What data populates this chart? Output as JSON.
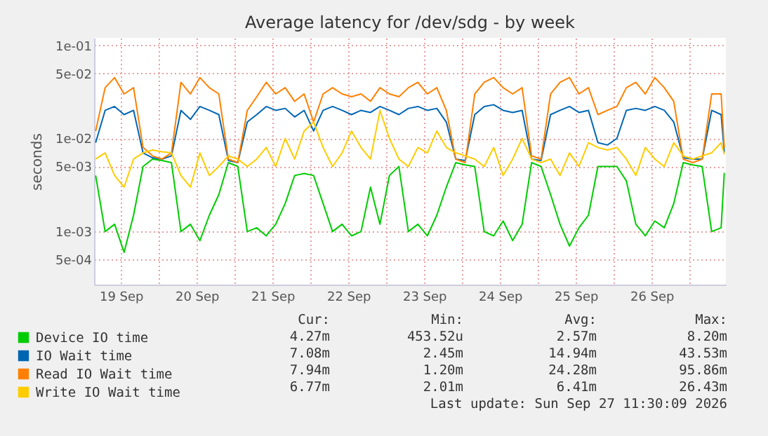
{
  "chart_data": {
    "type": "line",
    "title": "Average latency for /dev/sdg - by week",
    "ylabel": "seconds",
    "log": true,
    "grid": true,
    "legend": "bottom",
    "line_style": "solid",
    "xlim": [
      "2026-09-19T03:30",
      "2026-09-27T11:30"
    ],
    "xticks": [
      {
        "value": "2026-09-19T12:00",
        "label": "19 Sep"
      },
      {
        "value": "2026-09-20T00:00",
        "label": null
      },
      {
        "value": "2026-09-20T12:00",
        "label": "20 Sep"
      },
      {
        "value": "2026-09-21T00:00",
        "label": null
      },
      {
        "value": "2026-09-21T12:00",
        "label": "21 Sep"
      },
      {
        "value": "2026-09-22T00:00",
        "label": null
      },
      {
        "value": "2026-09-22T12:00",
        "label": "22 Sep"
      },
      {
        "value": "2026-09-23T00:00",
        "label": null
      },
      {
        "value": "2026-09-23T12:00",
        "label": "23 Sep"
      },
      {
        "value": "2026-09-24T00:00",
        "label": null
      },
      {
        "value": "2026-09-24T12:00",
        "label": "24 Sep"
      },
      {
        "value": "2026-09-25T00:00",
        "label": null
      },
      {
        "value": "2026-09-25T12:00",
        "label": "25 Sep"
      },
      {
        "value": "2026-09-26T00:00",
        "label": null
      },
      {
        "value": "2026-09-26T12:00",
        "label": "26 Sep"
      },
      {
        "value": "2026-09-27T00:00",
        "label": null
      }
    ],
    "ylim": [
      0.00027,
      0.12
    ],
    "yticks": [
      {
        "value": 0.0005,
        "label": "5e-04"
      },
      {
        "value": 0.001,
        "label": "1e-03"
      },
      {
        "value": 0.005,
        "label": "5e-03"
      },
      {
        "value": 0.01,
        "label": "1e-02"
      },
      {
        "value": 0.05,
        "label": "5e-02"
      },
      {
        "value": 0.1,
        "label": "1e-01"
      }
    ],
    "x": [
      "2026-09-19T04:00",
      "2026-09-19T07:00",
      "2026-09-19T10:00",
      "2026-09-19T13:00",
      "2026-09-19T16:00",
      "2026-09-19T19:00",
      "2026-09-19T22:00",
      "2026-09-20T01:00",
      "2026-09-20T04:00",
      "2026-09-20T07:00",
      "2026-09-20T10:00",
      "2026-09-20T13:00",
      "2026-09-20T16:00",
      "2026-09-20T19:00",
      "2026-09-20T22:00",
      "2026-09-21T01:00",
      "2026-09-21T04:00",
      "2026-09-21T07:00",
      "2026-09-21T10:00",
      "2026-09-21T13:00",
      "2026-09-21T16:00",
      "2026-09-21T19:00",
      "2026-09-21T22:00",
      "2026-09-22T01:00",
      "2026-09-22T04:00",
      "2026-09-22T07:00",
      "2026-09-22T10:00",
      "2026-09-22T13:00",
      "2026-09-22T16:00",
      "2026-09-22T19:00",
      "2026-09-22T22:00",
      "2026-09-23T01:00",
      "2026-09-23T04:00",
      "2026-09-23T07:00",
      "2026-09-23T10:00",
      "2026-09-23T13:00",
      "2026-09-23T16:00",
      "2026-09-23T19:00",
      "2026-09-23T22:00",
      "2026-09-24T01:00",
      "2026-09-24T04:00",
      "2026-09-24T07:00",
      "2026-09-24T10:00",
      "2026-09-24T13:00",
      "2026-09-24T16:00",
      "2026-09-24T19:00",
      "2026-09-24T22:00",
      "2026-09-25T01:00",
      "2026-09-25T04:00",
      "2026-09-25T07:00",
      "2026-09-25T10:00",
      "2026-09-25T13:00",
      "2026-09-25T16:00",
      "2026-09-25T19:00",
      "2026-09-25T22:00",
      "2026-09-26T01:00",
      "2026-09-26T04:00",
      "2026-09-26T07:00",
      "2026-09-26T10:00",
      "2026-09-26T13:00",
      "2026-09-26T16:00",
      "2026-09-26T19:00",
      "2026-09-26T22:00",
      "2026-09-27T01:00",
      "2026-09-27T04:00",
      "2026-09-27T07:00",
      "2026-09-27T10:00",
      "2026-09-27T11:00"
    ],
    "series": [
      {
        "name": "Device IO time",
        "color": "#00cc00",
        "values": [
          0.004,
          0.001,
          0.0012,
          0.0006,
          0.0015,
          0.005,
          0.006,
          0.0058,
          0.0055,
          0.001,
          0.0012,
          0.0008,
          0.0015,
          0.0025,
          0.0055,
          0.005,
          0.001,
          0.0011,
          0.0009,
          0.0012,
          0.002,
          0.004,
          0.0042,
          0.004,
          0.002,
          0.001,
          0.0012,
          0.0009,
          0.001,
          0.003,
          0.0012,
          0.004,
          0.005,
          0.001,
          0.0012,
          0.0009,
          0.0015,
          0.003,
          0.0055,
          0.0052,
          0.005,
          0.001,
          0.0009,
          0.0013,
          0.0008,
          0.0012,
          0.0055,
          0.005,
          0.0025,
          0.0012,
          0.0007,
          0.0011,
          0.0015,
          0.005,
          0.005,
          0.005,
          0.0035,
          0.0012,
          0.0009,
          0.0013,
          0.0011,
          0.002,
          0.0055,
          0.0052,
          0.005,
          0.001,
          0.0011,
          0.00427
        ]
      },
      {
        "name": "IO Wait time",
        "color": "#0066b3",
        "values": [
          0.009,
          0.02,
          0.022,
          0.018,
          0.02,
          0.007,
          0.0062,
          0.006,
          0.0065,
          0.02,
          0.016,
          0.022,
          0.02,
          0.018,
          0.0058,
          0.0055,
          0.015,
          0.018,
          0.022,
          0.02,
          0.021,
          0.017,
          0.02,
          0.012,
          0.02,
          0.022,
          0.02,
          0.018,
          0.02,
          0.019,
          0.022,
          0.02,
          0.018,
          0.021,
          0.022,
          0.02,
          0.021,
          0.015,
          0.006,
          0.0058,
          0.018,
          0.022,
          0.023,
          0.02,
          0.019,
          0.02,
          0.006,
          0.0058,
          0.018,
          0.02,
          0.022,
          0.019,
          0.02,
          0.009,
          0.0085,
          0.01,
          0.02,
          0.021,
          0.02,
          0.022,
          0.02,
          0.015,
          0.0062,
          0.006,
          0.006,
          0.02,
          0.018,
          0.00708
        ]
      },
      {
        "name": "Read IO Wait time",
        "color": "#ff8000",
        "values": [
          0.012,
          0.035,
          0.045,
          0.03,
          0.035,
          0.008,
          0.0065,
          0.006,
          0.007,
          0.04,
          0.03,
          0.045,
          0.035,
          0.03,
          0.006,
          0.0055,
          0.02,
          0.028,
          0.04,
          0.03,
          0.035,
          0.025,
          0.03,
          0.015,
          0.03,
          0.035,
          0.03,
          0.028,
          0.03,
          0.025,
          0.035,
          0.03,
          0.028,
          0.035,
          0.04,
          0.03,
          0.035,
          0.02,
          0.006,
          0.0055,
          0.03,
          0.04,
          0.045,
          0.035,
          0.03,
          0.035,
          0.0065,
          0.006,
          0.03,
          0.04,
          0.045,
          0.03,
          0.035,
          0.018,
          0.02,
          0.022,
          0.035,
          0.04,
          0.03,
          0.045,
          0.035,
          0.025,
          0.006,
          0.0055,
          0.006,
          0.03,
          0.03,
          0.00794
        ]
      },
      {
        "name": "Write IO Wait time",
        "color": "#ffcc00",
        "values": [
          0.006,
          0.007,
          0.004,
          0.003,
          0.006,
          0.007,
          0.0075,
          0.0072,
          0.007,
          0.004,
          0.003,
          0.007,
          0.004,
          0.005,
          0.0065,
          0.006,
          0.005,
          0.006,
          0.008,
          0.005,
          0.01,
          0.006,
          0.012,
          0.015,
          0.008,
          0.005,
          0.007,
          0.012,
          0.008,
          0.006,
          0.02,
          0.01,
          0.006,
          0.005,
          0.008,
          0.007,
          0.012,
          0.008,
          0.007,
          0.0065,
          0.006,
          0.005,
          0.008,
          0.004,
          0.006,
          0.01,
          0.006,
          0.0055,
          0.006,
          0.004,
          0.007,
          0.005,
          0.009,
          0.008,
          0.0075,
          0.008,
          0.006,
          0.004,
          0.008,
          0.006,
          0.005,
          0.009,
          0.0065,
          0.006,
          0.0065,
          0.007,
          0.009,
          0.00677
        ]
      }
    ],
    "annotations": [
      "Cur:",
      "Min:",
      "Avg:",
      "Max:",
      "4.27m",
      "453.52u",
      "2.57m",
      "8.20m",
      "7.08m",
      "2.45m",
      "14.94m",
      "43.53m",
      "7.94m",
      "1.20m",
      "24.28m",
      "95.86m",
      "6.77m",
      "2.01m",
      "6.41m",
      "26.43m",
      "Last update: Sun Sep 27 11:30:09 2026"
    ]
  }
}
